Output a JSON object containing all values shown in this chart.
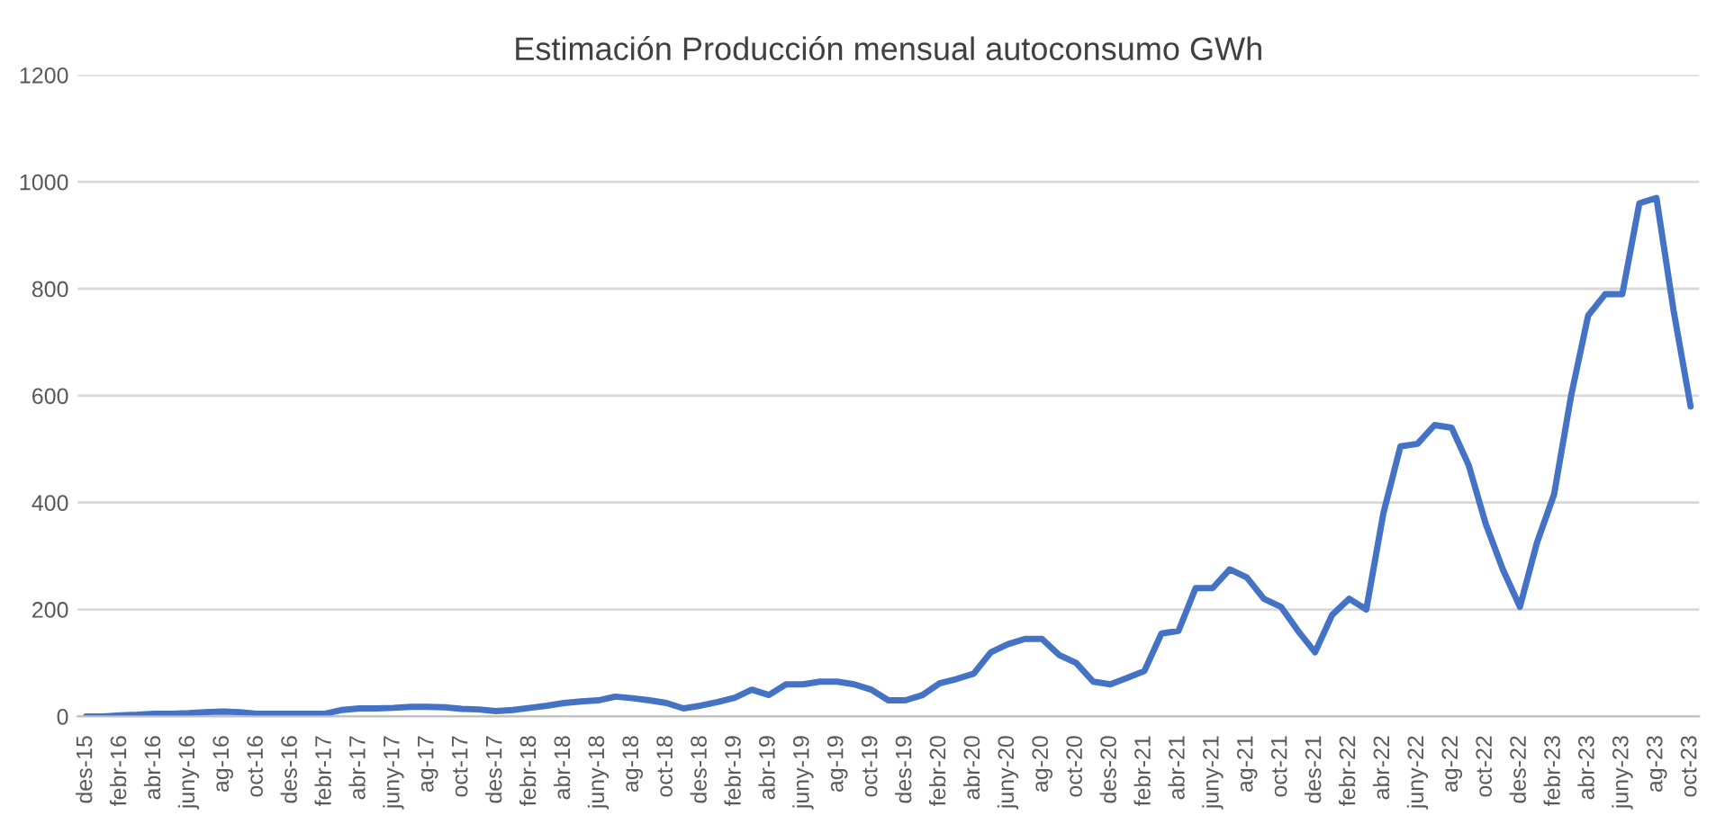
{
  "chart_data": {
    "type": "line",
    "title": "Estimación Producción mensual autoconsumo GWh",
    "categories": [
      "des-15",
      null,
      "febr-16",
      null,
      "abr-16",
      null,
      "juny-16",
      null,
      "ag-16",
      null,
      "oct-16",
      null,
      "des-16",
      null,
      "febr-17",
      null,
      "abr-17",
      null,
      "juny-17",
      null,
      "ag-17",
      null,
      "oct-17",
      null,
      "des-17",
      null,
      "febr-18",
      null,
      "abr-18",
      null,
      "juny-18",
      null,
      "ag-18",
      null,
      "oct-18",
      null,
      "des-18",
      null,
      "febr-19",
      null,
      "abr-19",
      null,
      "juny-19",
      null,
      "ag-19",
      null,
      "oct-19",
      null,
      "des-19",
      null,
      "febr-20",
      null,
      "abr-20",
      null,
      "juny-20",
      null,
      "ag-20",
      null,
      "oct-20",
      null,
      "des-20",
      null,
      "febr-21",
      null,
      "abr-21",
      null,
      "juny-21",
      null,
      "ag-21",
      null,
      "oct-21",
      null,
      "des-21",
      null,
      "febr-22",
      null,
      "abr-22",
      null,
      "juny-22",
      null,
      "ag-22",
      null,
      "oct-22",
      null,
      "des-22",
      null,
      "febr-23",
      null,
      "abr-23",
      null,
      "juny-23",
      null,
      "ag-23",
      null,
      "oct-23"
    ],
    "series": [
      {
        "color": "#4472c4",
        "values": [
          0,
          0,
          2,
          3,
          5,
          5,
          6,
          8,
          9,
          8,
          5,
          5,
          5,
          5,
          5,
          12,
          15,
          15,
          16,
          18,
          18,
          17,
          14,
          13,
          10,
          12,
          16,
          20,
          25,
          28,
          30,
          37,
          34,
          30,
          25,
          15,
          20,
          27,
          35,
          50,
          40,
          60,
          60,
          65,
          65,
          60,
          50,
          30,
          30,
          40,
          62,
          70,
          80,
          120,
          135,
          145,
          145,
          115,
          100,
          65,
          60,
          72,
          85,
          155,
          160,
          240,
          240,
          275,
          260,
          220,
          205,
          160,
          120,
          190,
          220,
          200,
          380,
          505,
          510,
          545,
          540,
          470,
          360,
          275,
          205,
          325,
          415,
          600,
          750,
          790,
          790,
          960,
          970,
          760,
          580
        ]
      }
    ],
    "ylim": [
      0,
      1200
    ],
    "yticks": [
      0,
      200,
      400,
      600,
      800,
      1000,
      1200
    ],
    "grid": "y",
    "marker": "none",
    "line_style": "solid"
  }
}
